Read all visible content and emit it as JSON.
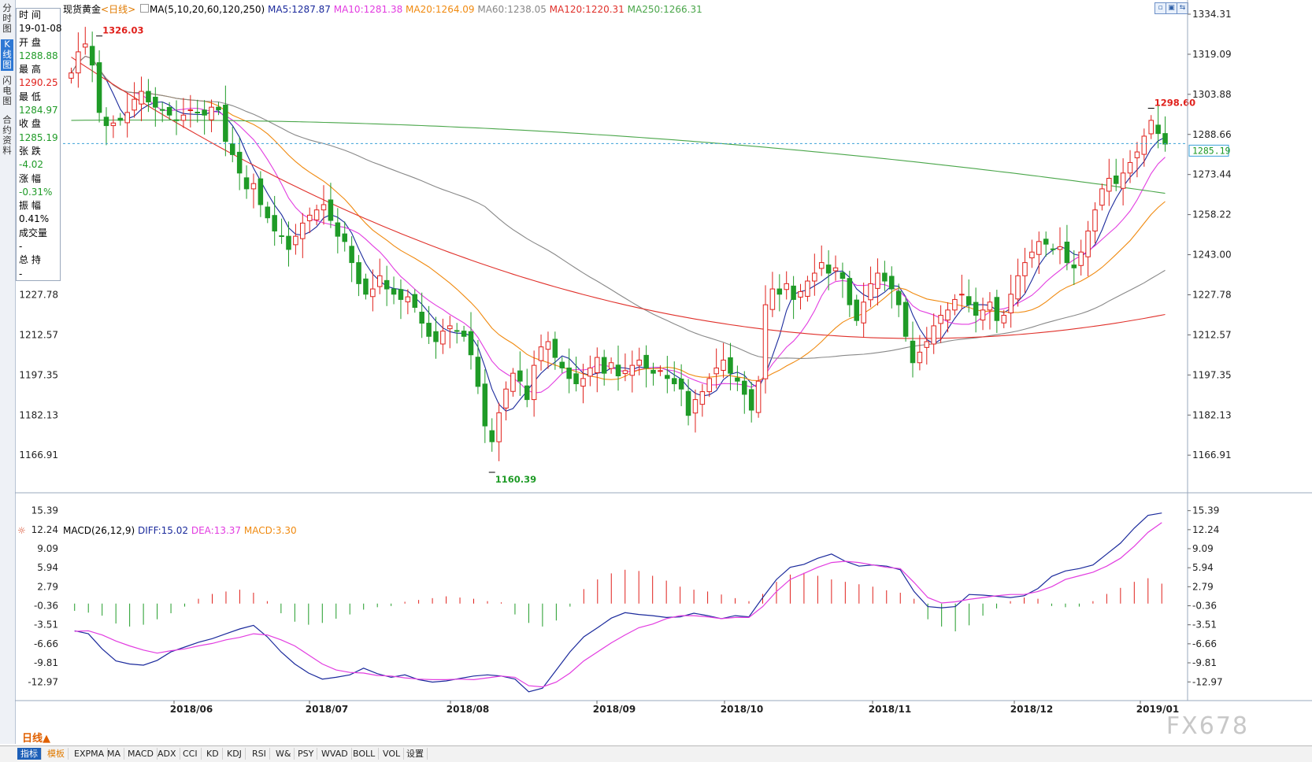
{
  "instrument": {
    "name": "现货黄金",
    "period": "<日线>"
  },
  "left_tabs": [
    {
      "label": "分时图",
      "active": false
    },
    {
      "label": "K线图",
      "active": true
    },
    {
      "label": "闪电图",
      "active": false
    },
    {
      "label": "合约资料",
      "active": false
    }
  ],
  "info": {
    "time_label": "时 间",
    "time": "19-01-08",
    "open_label": "开 盘",
    "open": "1288.88",
    "high_label": "最 高",
    "high": "1290.25",
    "low_label": "最 低",
    "low": "1284.97",
    "close_label": "收 盘",
    "close": "1285.19",
    "change_label": "张 跌",
    "change": "-4.02",
    "pct_label": "涨 幅",
    "pct": "-0.31%",
    "amp_label": "振 幅",
    "amp": "0.41%",
    "vol_label": "成交量",
    "vol": "-",
    "oi_label": "总 持",
    "oi": "-"
  },
  "ma_legend": {
    "prefix": "MA(5,10,20,60,120,250)",
    "items": [
      {
        "label": "MA5:1287.87",
        "color": "#1b2a9c"
      },
      {
        "label": "MA10:1281.38",
        "color": "#e23ce0"
      },
      {
        "label": "MA20:1264.09",
        "color": "#f08a10"
      },
      {
        "label": "MA60:1238.05",
        "color": "#888888"
      },
      {
        "label": "MA120:1220.31",
        "color": "#e0302a"
      },
      {
        "label": "MA250:1266.31",
        "color": "#4aa64a"
      }
    ]
  },
  "macd_legend": {
    "prefix": "MACD(26,12,9)",
    "items": [
      {
        "label": "DIFF:15.02",
        "color": "#1b2a9c"
      },
      {
        "label": "DEA:13.37",
        "color": "#e23ce0"
      },
      {
        "label": "MACD:3.30",
        "color": "#f08a10"
      }
    ]
  },
  "bottom_bar": {
    "period_button": "日线▲",
    "buttons": [
      "指标",
      "模板",
      "EXPMA",
      "MA",
      "MACD",
      "ADX",
      "CCI",
      "KD",
      "KDJ",
      "RSI",
      "W&",
      "PSY",
      "WVAD",
      "BOLL",
      "VOL",
      "设置"
    ]
  },
  "watermark": "FX678",
  "colors": {
    "up": "#e0201b",
    "down": "#1f9b27",
    "last_price_line": "#3aa0d8"
  },
  "chart_data": [
    {
      "type": "candlestick",
      "title": "",
      "x_labels": [
        "2018/06",
        "2018/07",
        "2018/08",
        "2018/09",
        "2018/10",
        "2018/11",
        "2018/12",
        "2019/01"
      ],
      "y_ticks": [
        1334.31,
        1319.09,
        1303.88,
        1288.66,
        1273.44,
        1258.22,
        1243.0,
        1227.78,
        1212.57,
        1197.35,
        1182.13,
        1166.91
      ],
      "ylim": [
        1160.39,
        1334.31
      ],
      "annotations": [
        {
          "label": "1326.03",
          "value": 1326.03
        },
        {
          "label": "1160.39",
          "value": 1160.39
        },
        {
          "label": "1298.60",
          "value": 1298.6
        }
      ],
      "last_price": {
        "label": "1285.19",
        "value": 1285.19
      },
      "close_series": [
        1312,
        1320,
        1323,
        1315,
        1297,
        1292,
        1293,
        1294,
        1297,
        1302,
        1305,
        1301,
        1299,
        1298,
        1296,
        1294,
        1296,
        1298,
        1297,
        1296,
        1299,
        1298,
        1286,
        1281,
        1274,
        1268,
        1270,
        1262,
        1257,
        1252,
        1250,
        1245,
        1250,
        1255,
        1258,
        1260,
        1262,
        1256,
        1250,
        1248,
        1240,
        1232,
        1228,
        1230,
        1235,
        1230,
        1228,
        1226,
        1227,
        1223,
        1217,
        1212,
        1210,
        1214,
        1216,
        1214,
        1212,
        1205,
        1193,
        1178,
        1172,
        1183,
        1192,
        1198,
        1195,
        1188,
        1201,
        1208,
        1210,
        1204,
        1200,
        1196,
        1194,
        1196,
        1200,
        1204,
        1198,
        1202,
        1197,
        1199,
        1201,
        1203,
        1200,
        1198,
        1199,
        1196,
        1194,
        1192,
        1182,
        1188,
        1191,
        1196,
        1200,
        1203,
        1198,
        1195,
        1190,
        1184,
        1195,
        1224,
        1230,
        1228,
        1232,
        1226,
        1229,
        1233,
        1236,
        1240,
        1236,
        1238,
        1234,
        1224,
        1218,
        1225,
        1232,
        1236,
        1233,
        1230,
        1224,
        1212,
        1202,
        1206,
        1210,
        1216,
        1220,
        1222,
        1226,
        1228,
        1224,
        1220,
        1222,
        1225,
        1218,
        1220,
        1228,
        1235,
        1240,
        1244,
        1248,
        1247,
        1245,
        1246,
        1240,
        1238,
        1244,
        1252,
        1260,
        1268,
        1272,
        1270,
        1274,
        1278,
        1282,
        1288,
        1294,
        1289,
        1285
      ],
      "ma_series_note": "MA5, MA10, MA20, MA60, MA120, MA250 drawn as lines; values read from legend"
    },
    {
      "type": "bar",
      "title": "",
      "y_ticks": [
        15.39,
        12.24,
        9.09,
        5.94,
        2.79,
        -0.36,
        -3.51,
        -6.66,
        -9.81,
        -12.97
      ],
      "ylim": [
        -14.5,
        16.0
      ],
      "series": [
        {
          "name": "DIFF",
          "color": "#1b2a9c"
        },
        {
          "name": "DEA",
          "color": "#e23ce0"
        },
        {
          "name": "MACD",
          "color": "#f08a10"
        }
      ],
      "diff": [
        -4.5,
        -5.0,
        -7.5,
        -9.5,
        -10.0,
        -10.2,
        -9.4,
        -8.0,
        -7.2,
        -6.4,
        -5.8,
        -5.0,
        -4.2,
        -3.6,
        -5.5,
        -8.0,
        -10.0,
        -11.5,
        -12.5,
        -12.2,
        -11.8,
        -10.7,
        -11.6,
        -12.2,
        -11.8,
        -12.6,
        -13.0,
        -12.8,
        -12.4,
        -12.0,
        -11.8,
        -12.0,
        -12.5,
        -14.6,
        -14.0,
        -11.0,
        -8.0,
        -5.5,
        -4.0,
        -2.4,
        -1.5,
        -1.8,
        -2.0,
        -2.3,
        -2.2,
        -1.6,
        -2.0,
        -2.5,
        -2.0,
        -2.2,
        1.0,
        4.0,
        6.0,
        6.5,
        7.5,
        8.2,
        7.0,
        6.2,
        6.4,
        6.2,
        5.6,
        2.0,
        -0.5,
        -0.7,
        -0.5,
        1.5,
        1.4,
        1.2,
        1.0,
        1.3,
        2.5,
        4.5,
        5.4,
        5.8,
        6.4,
        8.2,
        10.0,
        12.5,
        14.6,
        15.0
      ],
      "dea": [
        -4.6,
        -4.5,
        -5.2,
        -6.2,
        -7.0,
        -7.7,
        -8.2,
        -7.8,
        -7.5,
        -7.0,
        -6.6,
        -6.0,
        -5.6,
        -5.0,
        -5.2,
        -6.0,
        -7.0,
        -8.5,
        -10.0,
        -11.0,
        -11.4,
        -11.5,
        -11.9,
        -12.0,
        -12.3,
        -12.5,
        -12.6,
        -12.6,
        -12.5,
        -12.6,
        -12.3,
        -12.0,
        -12.2,
        -13.6,
        -13.8,
        -13.0,
        -11.5,
        -9.5,
        -8.0,
        -6.5,
        -5.2,
        -4.0,
        -3.4,
        -2.5,
        -2.0,
        -2.0,
        -2.2,
        -2.5,
        -2.3,
        -2.3,
        -0.5,
        2.0,
        4.0,
        5.0,
        6.0,
        6.8,
        7.0,
        6.8,
        6.4,
        6.0,
        5.8,
        3.5,
        1.0,
        0.1,
        0.3,
        0.7,
        1.0,
        1.3,
        1.5,
        1.5,
        2.0,
        2.8,
        4.0,
        4.6,
        5.2,
        6.2,
        7.5,
        9.5,
        11.8,
        13.4
      ],
      "macd_bars": [
        -1.2,
        -1.5,
        -2.0,
        -3.3,
        -3.8,
        -3.5,
        -2.6,
        -1.6,
        -0.5,
        0.8,
        1.6,
        2.0,
        2.3,
        1.8,
        0.4,
        -1.6,
        -3.0,
        -3.5,
        -3.2,
        -2.5,
        -1.8,
        -1.0,
        -0.6,
        -0.4,
        0.3,
        0.6,
        0.9,
        1.2,
        1.0,
        0.8,
        0.4,
        0.2,
        -1.8,
        -3.2,
        -3.8,
        -2.8,
        -0.5,
        2.4,
        4.0,
        5.0,
        5.6,
        5.4,
        4.6,
        3.8,
        2.8,
        2.3,
        2.0,
        1.5,
        0.9,
        0.4,
        1.6,
        3.6,
        4.8,
        5.1,
        4.6,
        4.0,
        3.6,
        3.2,
        2.8,
        2.2,
        1.8,
        0.8,
        -2.6,
        -3.8,
        -4.6,
        -3.6,
        -2.0,
        -0.8,
        0.4,
        1.0,
        0.8,
        -0.4,
        -0.6,
        -0.5,
        0.4,
        1.6,
        2.6,
        3.6,
        4.2,
        3.3
      ]
    }
  ]
}
